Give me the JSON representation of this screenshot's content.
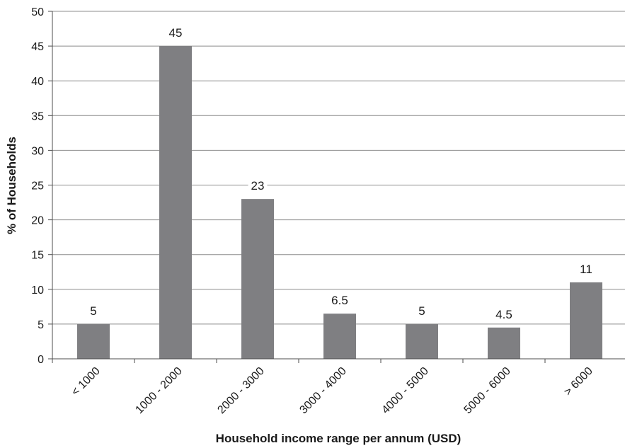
{
  "chart_data": {
    "type": "bar",
    "title": "",
    "xlabel": "Household income range per annum (USD)",
    "ylabel": "% of Households",
    "categories": [
      "< 1000",
      "1000 - 2000",
      "2000 - 3000",
      "3000 - 4000",
      "4000 - 5000",
      "5000 - 6000",
      "> 6000"
    ],
    "values": [
      5,
      45,
      23,
      6.5,
      5,
      4.5,
      11
    ],
    "data_labels": [
      "5",
      "45",
      "23",
      "6.5",
      "5",
      "4.5",
      "11"
    ],
    "ylim": [
      0,
      50
    ],
    "yticks": [
      0,
      5,
      10,
      15,
      20,
      25,
      30,
      35,
      40,
      45,
      50
    ],
    "grid": true,
    "legend": "none",
    "colors": {
      "bar": "#7f7f82",
      "grid": "#8c8c8c",
      "axis": "#4d4d4d",
      "text": "#1a1a1a"
    }
  }
}
